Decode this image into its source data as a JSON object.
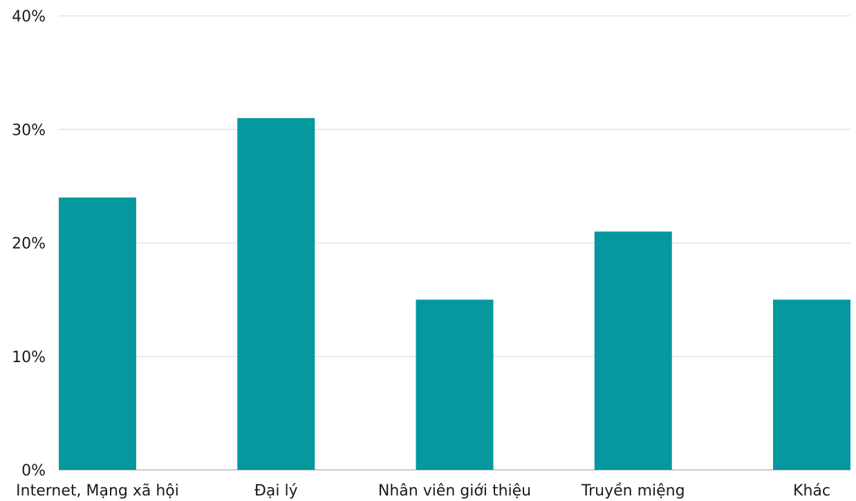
{
  "chart_data": {
    "type": "bar",
    "title": "",
    "xlabel": "",
    "ylabel": "",
    "categories": [
      "Internet, Mạng xã hội",
      "Đại lý",
      "Nhân viên giới thiệu",
      "Truyền miệng",
      "Khác"
    ],
    "values": [
      24,
      31,
      15,
      21,
      15
    ],
    "ylim": [
      0,
      40
    ],
    "yticks": [
      {
        "value": 0,
        "label": "0%"
      },
      {
        "value": 10,
        "label": "10%"
      },
      {
        "value": 20,
        "label": "20%"
      },
      {
        "value": 30,
        "label": "30%"
      },
      {
        "value": 40,
        "label": "40%"
      }
    ],
    "grid": true,
    "legend": "none",
    "bar_color": "#05989F",
    "gridline_color": "#E3E3E3"
  }
}
